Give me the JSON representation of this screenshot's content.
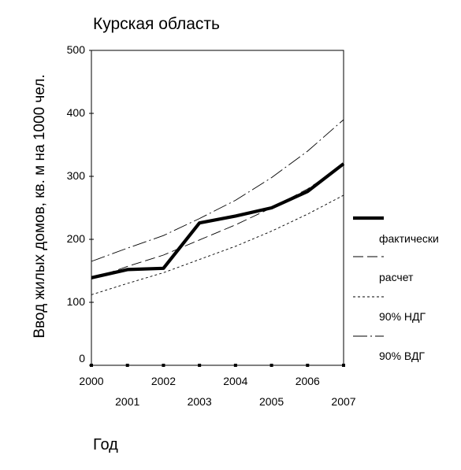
{
  "chart_data": {
    "type": "line",
    "title": "Курская область",
    "xlabel": "Год",
    "ylabel": "Ввод жилых домов, кв. м на 1000 чел.",
    "x": [
      2000,
      2001,
      2002,
      2003,
      2004,
      2005,
      2006,
      2007
    ],
    "xlim": [
      2000,
      2007
    ],
    "ylim": [
      0,
      500
    ],
    "yticks": [
      0,
      100,
      200,
      300,
      400,
      500
    ],
    "xticks_top_row": [
      "2000",
      "2002",
      "2004",
      "2006"
    ],
    "xticks_bottom_row": [
      "2001",
      "2003",
      "2005",
      "2007"
    ],
    "grid": false,
    "legend_position": "right",
    "series": [
      {
        "name": "фактически",
        "style": "thick-solid",
        "values": [
          139,
          152,
          154,
          226,
          237,
          250,
          276,
          320
        ]
      },
      {
        "name": "расчет",
        "style": "long-dash",
        "values": [
          137,
          157,
          175,
          199,
          223,
          250,
          280,
          318
        ]
      },
      {
        "name": "90% НДГ",
        "style": "short-dash",
        "values": [
          112,
          130,
          147,
          168,
          189,
          213,
          240,
          270
        ]
      },
      {
        "name": "90% ВДГ",
        "style": "dash-dot",
        "values": [
          165,
          186,
          206,
          233,
          262,
          298,
          340,
          390
        ]
      }
    ]
  }
}
